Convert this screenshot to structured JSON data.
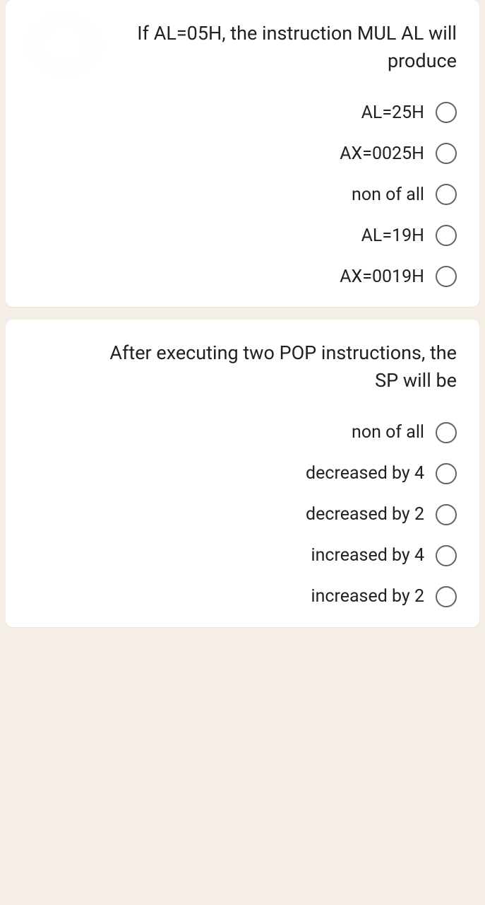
{
  "background_color": "#f5eee6",
  "card_color": "#ffffff",
  "text_color": "#202124",
  "radio_border_color": "#5f6368",
  "question_fontsize": 27,
  "option_fontsize": 25,
  "questions": [
    {
      "text": "If AL=05H, the instruction MUL AL will produce",
      "options": [
        "AL=25H",
        "AX=0025H",
        "non of all",
        "AL=19H",
        "AX=0019H"
      ]
    },
    {
      "text": "After executing two POP instructions, the SP will be",
      "options": [
        "non of all",
        "decreased by 4",
        "decreased by 2",
        "increased by 4",
        "increased by 2"
      ]
    }
  ]
}
